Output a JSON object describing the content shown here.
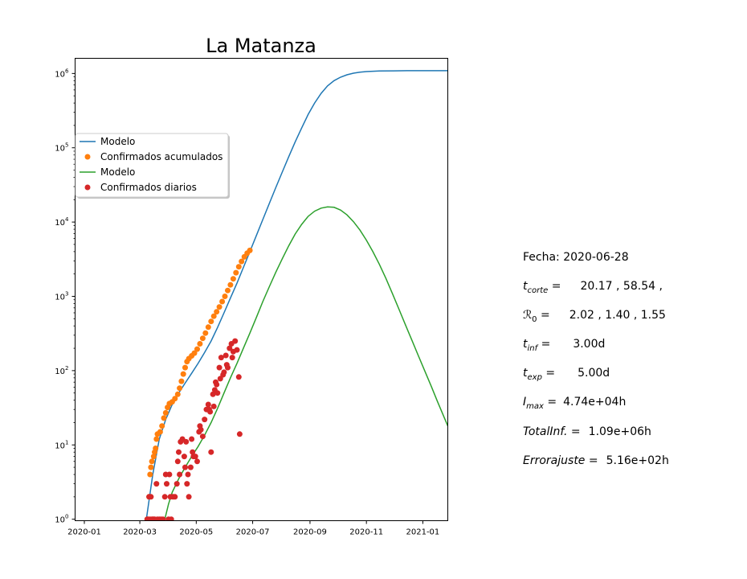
{
  "chart_data": {
    "type": "line",
    "title": "La Matanza",
    "xlabel": "",
    "ylabel": "",
    "yscale": "log",
    "ylim": [
      1,
      1600000
    ],
    "xlim": [
      "2019-12-22",
      "2021-01-28"
    ],
    "grid": false,
    "legend_position": "center-left",
    "x_ticks": [
      "2020-01",
      "2020-03",
      "2020-05",
      "2020-07",
      "2020-09",
      "2020-11",
      "2021-01"
    ],
    "y_ticks": [
      {
        "value": 1,
        "label": "10",
        "exp": "0"
      },
      {
        "value": 10,
        "label": "10",
        "exp": "1"
      },
      {
        "value": 100,
        "label": "10",
        "exp": "2"
      },
      {
        "value": 1000,
        "label": "10",
        "exp": "3"
      },
      {
        "value": 10000,
        "label": "10",
        "exp": "4"
      },
      {
        "value": 100000,
        "label": "10",
        "exp": "5"
      },
      {
        "value": 1000000,
        "label": "10",
        "exp": "6"
      }
    ],
    "series": [
      {
        "name": "Modelo",
        "kind": "line",
        "color": "#1f77b4",
        "points": [
          [
            "2020-03-08",
            1
          ],
          [
            "2020-03-15",
            4
          ],
          [
            "2020-03-22",
            12
          ],
          [
            "2020-03-29",
            22
          ],
          [
            "2020-04-05",
            35
          ],
          [
            "2020-04-12",
            50
          ],
          [
            "2020-04-19",
            68
          ],
          [
            "2020-04-26",
            92
          ],
          [
            "2020-05-03",
            125
          ],
          [
            "2020-05-10",
            175
          ],
          [
            "2020-05-17",
            250
          ],
          [
            "2020-05-24",
            380
          ],
          [
            "2020-05-31",
            600
          ],
          [
            "2020-06-07",
            950
          ],
          [
            "2020-06-14",
            1500
          ],
          [
            "2020-06-21",
            2450
          ],
          [
            "2020-06-28",
            4000
          ],
          [
            "2020-07-05",
            6600
          ],
          [
            "2020-07-12",
            10800
          ],
          [
            "2020-07-19",
            17800
          ],
          [
            "2020-07-26",
            29000
          ],
          [
            "2020-08-02",
            47000
          ],
          [
            "2020-08-09",
            76000
          ],
          [
            "2020-08-16",
            120000
          ],
          [
            "2020-08-23",
            185000
          ],
          [
            "2020-08-30",
            280000
          ],
          [
            "2020-09-06",
            400000
          ],
          [
            "2020-09-13",
            540000
          ],
          [
            "2020-09-20",
            680000
          ],
          [
            "2020-09-27",
            800000
          ],
          [
            "2020-10-04",
            890000
          ],
          [
            "2020-10-11",
            960000
          ],
          [
            "2020-10-18",
            1010000
          ],
          [
            "2020-10-25",
            1040000
          ],
          [
            "2020-11-01",
            1060000
          ],
          [
            "2020-11-15",
            1080000
          ],
          [
            "2020-12-01",
            1085000
          ],
          [
            "2020-12-15",
            1090000
          ],
          [
            "2021-01-01",
            1090000
          ],
          [
            "2021-01-28",
            1090000
          ]
        ]
      },
      {
        "name": "Confirmados acumulados",
        "kind": "scatter",
        "color": "#ff7f0e",
        "points": [
          [
            "2020-03-09",
            1
          ],
          [
            "2020-03-11",
            2
          ],
          [
            "2020-03-12",
            4
          ],
          [
            "2020-03-13",
            5
          ],
          [
            "2020-03-14",
            6
          ],
          [
            "2020-03-16",
            7
          ],
          [
            "2020-03-17",
            8
          ],
          [
            "2020-03-18",
            9
          ],
          [
            "2020-03-19",
            12
          ],
          [
            "2020-03-20",
            14
          ],
          [
            "2020-03-23",
            15
          ],
          [
            "2020-03-25",
            18
          ],
          [
            "2020-03-27",
            23
          ],
          [
            "2020-03-29",
            27
          ],
          [
            "2020-03-31",
            32
          ],
          [
            "2020-04-02",
            36
          ],
          [
            "2020-04-05",
            38
          ],
          [
            "2020-04-08",
            42
          ],
          [
            "2020-04-11",
            48
          ],
          [
            "2020-04-13",
            58
          ],
          [
            "2020-04-15",
            72
          ],
          [
            "2020-04-17",
            90
          ],
          [
            "2020-04-19",
            110
          ],
          [
            "2020-04-21",
            132
          ],
          [
            "2020-04-23",
            145
          ],
          [
            "2020-04-26",
            158
          ],
          [
            "2020-04-29",
            172
          ],
          [
            "2020-05-02",
            195
          ],
          [
            "2020-05-05",
            230
          ],
          [
            "2020-05-08",
            272
          ],
          [
            "2020-05-11",
            320
          ],
          [
            "2020-05-14",
            385
          ],
          [
            "2020-05-17",
            460
          ],
          [
            "2020-05-20",
            540
          ],
          [
            "2020-05-23",
            620
          ],
          [
            "2020-05-26",
            720
          ],
          [
            "2020-05-29",
            850
          ],
          [
            "2020-06-01",
            1000
          ],
          [
            "2020-06-04",
            1200
          ],
          [
            "2020-06-07",
            1430
          ],
          [
            "2020-06-10",
            1720
          ],
          [
            "2020-06-13",
            2080
          ],
          [
            "2020-06-16",
            2500
          ],
          [
            "2020-06-19",
            2950
          ],
          [
            "2020-06-22",
            3400
          ],
          [
            "2020-06-25",
            3800
          ],
          [
            "2020-06-28",
            4150
          ]
        ]
      },
      {
        "name": "Modelo",
        "kind": "line",
        "color": "#2ca02c",
        "points": [
          [
            "2020-03-28",
            1
          ],
          [
            "2020-04-01",
            1.6
          ],
          [
            "2020-04-05",
            2.3
          ],
          [
            "2020-04-12",
            3.5
          ],
          [
            "2020-04-19",
            5
          ],
          [
            "2020-04-26",
            7
          ],
          [
            "2020-05-03",
            9.5
          ],
          [
            "2020-05-10",
            13.5
          ],
          [
            "2020-05-17",
            20
          ],
          [
            "2020-05-24",
            31
          ],
          [
            "2020-05-31",
            50
          ],
          [
            "2020-06-07",
            80
          ],
          [
            "2020-06-14",
            125
          ],
          [
            "2020-06-21",
            200
          ],
          [
            "2020-06-28",
            320
          ],
          [
            "2020-07-05",
            520
          ],
          [
            "2020-07-12",
            850
          ],
          [
            "2020-07-19",
            1350
          ],
          [
            "2020-07-26",
            2100
          ],
          [
            "2020-08-02",
            3200
          ],
          [
            "2020-08-09",
            4800
          ],
          [
            "2020-08-16",
            6900
          ],
          [
            "2020-08-23",
            9300
          ],
          [
            "2020-08-30",
            11900
          ],
          [
            "2020-09-06",
            14000
          ],
          [
            "2020-09-13",
            15400
          ],
          [
            "2020-09-20",
            16000
          ],
          [
            "2020-09-27",
            15800
          ],
          [
            "2020-10-04",
            14500
          ],
          [
            "2020-10-11",
            12500
          ],
          [
            "2020-10-18",
            10100
          ],
          [
            "2020-10-25",
            7800
          ],
          [
            "2020-11-01",
            5700
          ],
          [
            "2020-11-08",
            4000
          ],
          [
            "2020-11-15",
            2700
          ],
          [
            "2020-11-22",
            1750
          ],
          [
            "2020-11-29",
            1100
          ],
          [
            "2020-12-06",
            680
          ],
          [
            "2020-12-13",
            420
          ],
          [
            "2020-12-20",
            260
          ],
          [
            "2020-12-27",
            160
          ],
          [
            "2021-01-03",
            100
          ],
          [
            "2021-01-10",
            62
          ],
          [
            "2021-01-17",
            38
          ],
          [
            "2021-01-28",
            18
          ]
        ]
      },
      {
        "name": "Confirmados diarios",
        "kind": "scatter",
        "color": "#d62728",
        "points": [
          [
            "2020-03-09",
            1
          ],
          [
            "2020-03-10",
            1
          ],
          [
            "2020-03-11",
            2
          ],
          [
            "2020-03-12",
            1
          ],
          [
            "2020-03-13",
            2
          ],
          [
            "2020-03-14",
            1
          ],
          [
            "2020-03-15",
            1
          ],
          [
            "2020-03-16",
            1
          ],
          [
            "2020-03-17",
            1
          ],
          [
            "2020-03-19",
            3
          ],
          [
            "2020-03-20",
            1
          ],
          [
            "2020-03-22",
            1
          ],
          [
            "2020-03-24",
            1
          ],
          [
            "2020-03-26",
            1
          ],
          [
            "2020-03-28",
            2
          ],
          [
            "2020-03-29",
            4
          ],
          [
            "2020-03-30",
            3
          ],
          [
            "2020-04-01",
            1
          ],
          [
            "2020-04-02",
            4
          ],
          [
            "2020-04-03",
            2
          ],
          [
            "2020-04-04",
            1
          ],
          [
            "2020-04-06",
            2
          ],
          [
            "2020-04-08",
            2
          ],
          [
            "2020-04-10",
            3
          ],
          [
            "2020-04-11",
            6
          ],
          [
            "2020-04-12",
            8
          ],
          [
            "2020-04-13",
            4
          ],
          [
            "2020-04-14",
            11
          ],
          [
            "2020-04-16",
            12
          ],
          [
            "2020-04-18",
            7
          ],
          [
            "2020-04-19",
            5
          ],
          [
            "2020-04-20",
            11
          ],
          [
            "2020-04-21",
            3
          ],
          [
            "2020-04-22",
            4
          ],
          [
            "2020-04-23",
            2
          ],
          [
            "2020-04-25",
            5
          ],
          [
            "2020-04-26",
            12
          ],
          [
            "2020-04-27",
            8
          ],
          [
            "2020-04-28",
            7
          ],
          [
            "2020-04-30",
            7
          ],
          [
            "2020-05-02",
            6
          ],
          [
            "2020-05-04",
            15
          ],
          [
            "2020-05-05",
            18
          ],
          [
            "2020-05-06",
            16
          ],
          [
            "2020-05-08",
            13
          ],
          [
            "2020-05-10",
            22
          ],
          [
            "2020-05-12",
            30
          ],
          [
            "2020-05-14",
            35
          ],
          [
            "2020-05-15",
            30
          ],
          [
            "2020-05-16",
            28
          ],
          [
            "2020-05-17",
            8
          ],
          [
            "2020-05-19",
            48
          ],
          [
            "2020-05-20",
            33
          ],
          [
            "2020-05-21",
            55
          ],
          [
            "2020-05-22",
            70
          ],
          [
            "2020-05-23",
            65
          ],
          [
            "2020-05-24",
            50
          ],
          [
            "2020-05-26",
            110
          ],
          [
            "2020-05-27",
            78
          ],
          [
            "2020-05-28",
            150
          ],
          [
            "2020-05-30",
            88
          ],
          [
            "2020-05-31",
            95
          ],
          [
            "2020-06-02",
            160
          ],
          [
            "2020-06-03",
            120
          ],
          [
            "2020-06-04",
            110
          ],
          [
            "2020-06-06",
            200
          ],
          [
            "2020-06-08",
            230
          ],
          [
            "2020-06-09",
            150
          ],
          [
            "2020-06-10",
            180
          ],
          [
            "2020-06-12",
            250
          ],
          [
            "2020-06-14",
            190
          ],
          [
            "2020-06-16",
            82
          ],
          [
            "2020-06-17",
            14
          ]
        ]
      }
    ]
  },
  "info": {
    "fecha": {
      "label": "Fecha:",
      "value": "2020-06-28"
    },
    "t_corte": {
      "symbol": "t",
      "sub": "corte",
      "eq": " =",
      "values": "20.17 ,      58.54 ,"
    },
    "r0": {
      "symbol": "ℛ",
      "sub": "0",
      "eq": " =",
      "values": "2.02 ,       1.40 ,       1.55"
    },
    "t_inf": {
      "symbol": "t",
      "sub": "inf",
      "eq": " =",
      "values": "3.00d"
    },
    "t_exp": {
      "symbol": "t",
      "sub": "exp",
      "eq": " =",
      "values": "5.00d"
    },
    "i_max": {
      "symbol": "I",
      "sub": "max",
      "eq": " =",
      "values": "4.74e+04h"
    },
    "total_inf": {
      "symbol": "TotalInf.",
      "eq": " =",
      "values": "1.09e+06h"
    },
    "error": {
      "symbol": "Errorajuste",
      "eq": " =",
      "values": "5.16e+02h"
    }
  }
}
